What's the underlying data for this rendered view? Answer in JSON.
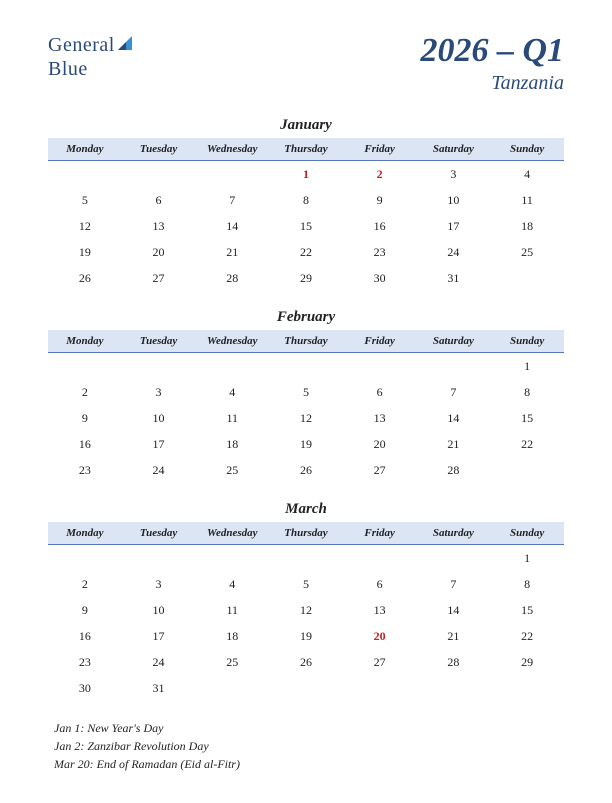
{
  "logo": {
    "general": "General",
    "blue": "Blue"
  },
  "title": "2026 – Q1",
  "subtitle": "Tanzania",
  "weekdays": [
    "Monday",
    "Tuesday",
    "Wednesday",
    "Thursday",
    "Friday",
    "Saturday",
    "Sunday"
  ],
  "header_bg": "#dbe5f4",
  "header_border": "#5578b8",
  "holiday_color": "#c02020",
  "title_color": "#2a4a7a",
  "months": [
    {
      "name": "January",
      "weeks": [
        [
          "",
          "",
          "",
          "1",
          "2",
          "3",
          "4"
        ],
        [
          "5",
          "6",
          "7",
          "8",
          "9",
          "10",
          "11"
        ],
        [
          "12",
          "13",
          "14",
          "15",
          "16",
          "17",
          "18"
        ],
        [
          "19",
          "20",
          "21",
          "22",
          "23",
          "24",
          "25"
        ],
        [
          "26",
          "27",
          "28",
          "29",
          "30",
          "31",
          ""
        ]
      ],
      "holidays": [
        "1",
        "2"
      ]
    },
    {
      "name": "February",
      "weeks": [
        [
          "",
          "",
          "",
          "",
          "",
          "",
          "1"
        ],
        [
          "2",
          "3",
          "4",
          "5",
          "6",
          "7",
          "8"
        ],
        [
          "9",
          "10",
          "11",
          "12",
          "13",
          "14",
          "15"
        ],
        [
          "16",
          "17",
          "18",
          "19",
          "20",
          "21",
          "22"
        ],
        [
          "23",
          "24",
          "25",
          "26",
          "27",
          "28",
          ""
        ]
      ],
      "holidays": []
    },
    {
      "name": "March",
      "weeks": [
        [
          "",
          "",
          "",
          "",
          "",
          "",
          "1"
        ],
        [
          "2",
          "3",
          "4",
          "5",
          "6",
          "7",
          "8"
        ],
        [
          "9",
          "10",
          "11",
          "12",
          "13",
          "14",
          "15"
        ],
        [
          "16",
          "17",
          "18",
          "19",
          "20",
          "21",
          "22"
        ],
        [
          "23",
          "24",
          "25",
          "26",
          "27",
          "28",
          "29"
        ],
        [
          "30",
          "31",
          "",
          "",
          "",
          "",
          ""
        ]
      ],
      "holidays": [
        "20"
      ]
    }
  ],
  "holidays_list": [
    "Jan 1: New Year's Day",
    "Jan 2: Zanzibar Revolution Day",
    "Mar 20: End of Ramadan (Eid al-Fitr)"
  ]
}
